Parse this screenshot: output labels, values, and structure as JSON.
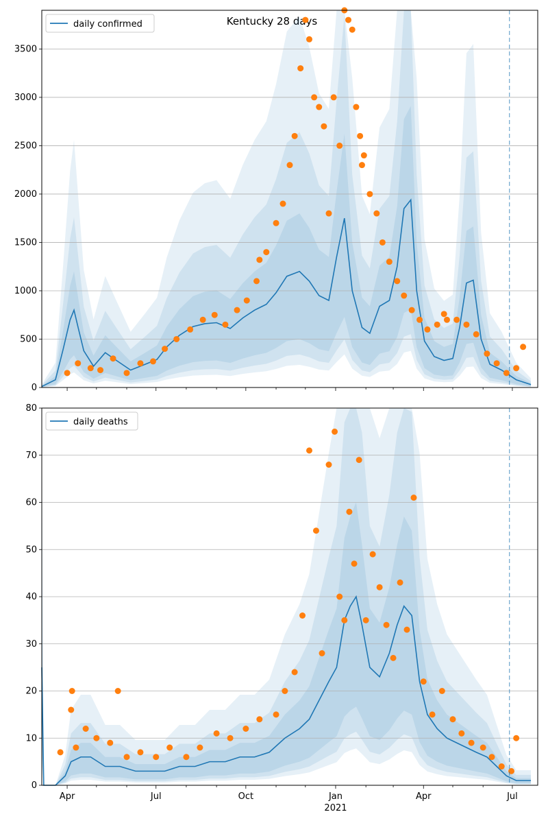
{
  "figure": {
    "title": "Kentucky 28 days"
  },
  "colors": {
    "line": "#1f77b4",
    "points": "#ff7f0e",
    "band": "#1f77b4",
    "grid": "#b0b0b0"
  },
  "chart_data": [
    {
      "type": "line",
      "name": "confirmed-panel",
      "legend": "daily confirmed",
      "legend_position": "upper-left",
      "grid": "horizontal",
      "x_ticks": [
        "Apr",
        "Jul",
        "Oct",
        "Jan",
        "Apr",
        "Jul"
      ],
      "x_year_label": "",
      "ylim": [
        0,
        3900
      ],
      "y_ticks": [
        "0",
        "500",
        "1000",
        "1500",
        "2000",
        "2500",
        "3000",
        "3500"
      ],
      "vline": "2021-06-28",
      "line": {
        "x": [
          "2020-03-06",
          "2020-03-20",
          "2020-03-28",
          "2020-04-04",
          "2020-04-08",
          "2020-04-12",
          "2020-04-18",
          "2020-04-28",
          "2020-05-10",
          "2020-05-20",
          "2020-06-05",
          "2020-06-20",
          "2020-07-02",
          "2020-07-12",
          "2020-07-25",
          "2020-08-08",
          "2020-08-20",
          "2020-09-01",
          "2020-09-15",
          "2020-09-28",
          "2020-10-10",
          "2020-10-22",
          "2020-11-01",
          "2020-11-12",
          "2020-11-25",
          "2020-12-05",
          "2020-12-15",
          "2020-12-25",
          "2021-01-02",
          "2021-01-10",
          "2021-01-18",
          "2021-01-28",
          "2021-02-05",
          "2021-02-15",
          "2021-02-25",
          "2021-03-05",
          "2021-03-12",
          "2021-03-19",
          "2021-03-25",
          "2021-04-02",
          "2021-04-12",
          "2021-04-22",
          "2021-05-01",
          "2021-05-08",
          "2021-05-15",
          "2021-05-22",
          "2021-05-30",
          "2021-06-08",
          "2021-06-20",
          "2021-07-05",
          "2021-07-20"
        ],
        "y": [
          10,
          80,
          400,
          700,
          800,
          630,
          380,
          220,
          360,
          290,
          180,
          240,
          290,
          420,
          540,
          630,
          660,
          670,
          610,
          720,
          800,
          860,
          980,
          1150,
          1200,
          1100,
          950,
          900,
          1350,
          1750,
          1000,
          620,
          560,
          840,
          900,
          1250,
          1850,
          1940,
          1000,
          480,
          320,
          280,
          300,
          620,
          1080,
          1110,
          500,
          240,
          180,
          80,
          30
        ]
      },
      "points": {
        "x": [
          "2020-04-01",
          "2020-04-12",
          "2020-04-25",
          "2020-05-05",
          "2020-05-18",
          "2020-06-01",
          "2020-06-15",
          "2020-06-28",
          "2020-07-10",
          "2020-07-22",
          "2020-08-05",
          "2020-08-18",
          "2020-08-30",
          "2020-09-10",
          "2020-09-22",
          "2020-10-02",
          "2020-10-12",
          "2020-10-22",
          "2020-11-01",
          "2020-11-08",
          "2020-11-15",
          "2020-11-20",
          "2020-11-26",
          "2020-12-01",
          "2020-12-05",
          "2020-12-10",
          "2020-12-15",
          "2020-12-20",
          "2020-12-25",
          "2020-12-30",
          "2021-01-05",
          "2021-01-10",
          "2021-01-14",
          "2021-01-18",
          "2021-01-22",
          "2021-01-26",
          "2021-01-30",
          "2021-02-05",
          "2021-02-12",
          "2021-02-18",
          "2021-02-25",
          "2021-03-05",
          "2021-03-12",
          "2021-03-20",
          "2021-03-28",
          "2021-04-05",
          "2021-04-15",
          "2021-04-25",
          "2021-05-05",
          "2021-05-15",
          "2021-05-25",
          "2021-06-05",
          "2021-06-15",
          "2021-06-25",
          "2021-07-05",
          "2021-07-12",
          "2021-04-22",
          "2021-01-28",
          "2020-10-15"
        ],
        "y": [
          150,
          250,
          200,
          180,
          300,
          150,
          250,
          270,
          400,
          500,
          600,
          700,
          750,
          650,
          800,
          900,
          1100,
          1400,
          1700,
          1900,
          2300,
          2600,
          3300,
          3800,
          3600,
          3000,
          2900,
          2700,
          1800,
          3000,
          2500,
          3900,
          3800,
          3700,
          2900,
          2600,
          2400,
          2000,
          1800,
          1500,
          1300,
          1100,
          950,
          800,
          700,
          600,
          650,
          700,
          700,
          650,
          550,
          350,
          250,
          150,
          200,
          420,
          760,
          2300,
          1320
        ]
      }
    },
    {
      "type": "line",
      "name": "deaths-panel",
      "legend": "daily deaths",
      "legend_position": "upper-left",
      "grid": "horizontal",
      "x_ticks": [
        "Apr",
        "Jul",
        "Oct",
        "Jan",
        "Apr",
        "Jul"
      ],
      "x_year_label": "2021",
      "ylim": [
        0,
        80
      ],
      "y_ticks": [
        "0",
        "10",
        "20",
        "30",
        "40",
        "50",
        "60",
        "70",
        "80"
      ],
      "vline": "2021-06-28",
      "line": {
        "x": [
          "2020-03-06",
          "2020-03-08",
          "2020-03-20",
          "2020-03-30",
          "2020-04-05",
          "2020-04-15",
          "2020-04-25",
          "2020-05-10",
          "2020-05-25",
          "2020-06-10",
          "2020-06-25",
          "2020-07-10",
          "2020-07-25",
          "2020-08-10",
          "2020-08-25",
          "2020-09-10",
          "2020-09-25",
          "2020-10-10",
          "2020-10-25",
          "2020-11-10",
          "2020-11-25",
          "2020-12-05",
          "2020-12-15",
          "2020-12-25",
          "2021-01-02",
          "2021-01-10",
          "2021-01-16",
          "2021-01-22",
          "2021-01-28",
          "2021-02-05",
          "2021-02-15",
          "2021-02-25",
          "2021-03-05",
          "2021-03-12",
          "2021-03-20",
          "2021-03-28",
          "2021-04-05",
          "2021-04-15",
          "2021-04-25",
          "2021-05-05",
          "2021-05-15",
          "2021-05-25",
          "2021-06-05",
          "2021-06-15",
          "2021-06-25",
          "2021-07-05",
          "2021-07-20"
        ],
        "y": [
          25,
          0,
          0,
          2,
          5,
          6,
          6,
          4,
          4,
          3,
          3,
          3,
          4,
          4,
          5,
          5,
          6,
          6,
          7,
          10,
          12,
          14,
          18,
          22,
          25,
          35,
          38,
          40,
          34,
          25,
          23,
          28,
          34,
          38,
          36,
          22,
          15,
          12,
          10,
          9,
          8,
          7,
          6,
          4,
          2,
          1,
          1
        ]
      },
      "points": {
        "x": [
          "2020-03-25",
          "2020-04-05",
          "2020-04-10",
          "2020-04-20",
          "2020-05-01",
          "2020-05-15",
          "2020-06-01",
          "2020-06-15",
          "2020-07-01",
          "2020-07-15",
          "2020-08-01",
          "2020-08-15",
          "2020-09-01",
          "2020-09-15",
          "2020-10-01",
          "2020-10-15",
          "2020-11-01",
          "2020-11-10",
          "2020-11-20",
          "2020-11-28",
          "2020-12-05",
          "2020-12-12",
          "2020-12-18",
          "2020-12-25",
          "2020-12-31",
          "2021-01-05",
          "2021-01-10",
          "2021-01-15",
          "2021-01-20",
          "2021-01-25",
          "2021-02-01",
          "2021-02-08",
          "2021-02-15",
          "2021-02-22",
          "2021-03-01",
          "2021-03-08",
          "2021-03-15",
          "2021-03-22",
          "2021-04-01",
          "2021-04-10",
          "2021-04-20",
          "2021-05-01",
          "2021-05-10",
          "2021-05-20",
          "2021-06-01",
          "2021-06-10",
          "2021-06-20",
          "2021-06-30",
          "2021-07-05",
          "2020-04-06",
          "2020-05-23"
        ],
        "y": [
          7,
          16,
          8,
          12,
          10,
          9,
          6,
          7,
          6,
          8,
          6,
          8,
          11,
          10,
          12,
          14,
          15,
          20,
          24,
          36,
          71,
          54,
          28,
          68,
          75,
          40,
          35,
          58,
          47,
          69,
          35,
          49,
          42,
          34,
          27,
          43,
          33,
          61,
          22,
          15,
          20,
          14,
          11,
          9,
          8,
          6,
          4,
          3,
          10,
          20,
          20
        ]
      }
    }
  ]
}
